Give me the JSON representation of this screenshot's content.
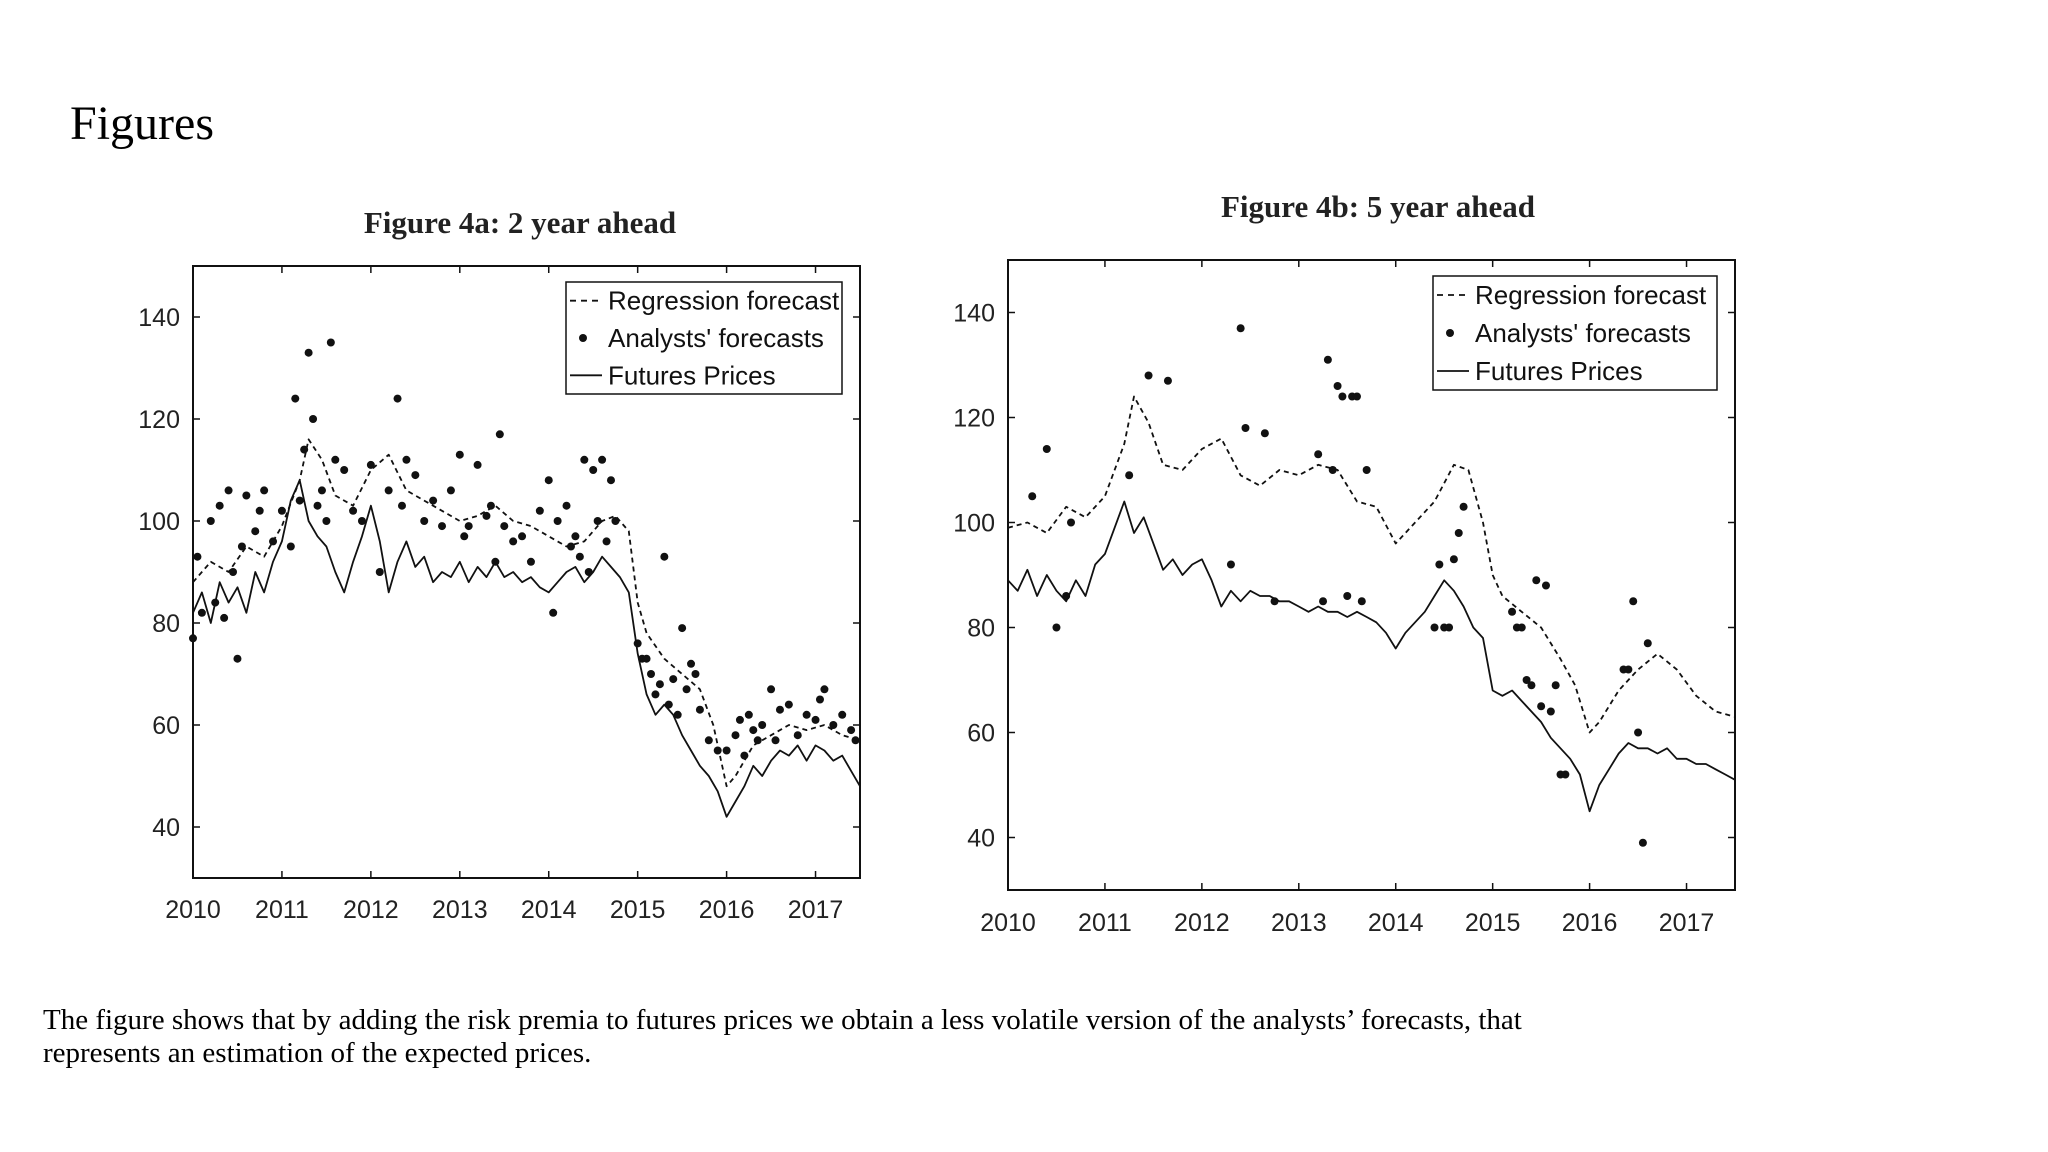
{
  "slide": {
    "title": "Figures",
    "caption_lines": [
      " The figure shows that by adding the risk premia to futures prices we obtain a less volatile version of the analysts’ forecasts, that",
      "represents an estimation of the expected prices."
    ]
  },
  "chart_data": [
    {
      "type": "line",
      "title": "Figure 4a: 2 year ahead",
      "xlabel": "",
      "ylabel": "",
      "xlim": [
        2010,
        2017.5
      ],
      "ylim": [
        30,
        150
      ],
      "x_ticks": [
        2010,
        2011,
        2012,
        2013,
        2014,
        2015,
        2016,
        2017
      ],
      "y_ticks": [
        40,
        60,
        80,
        100,
        120,
        140
      ],
      "legend_position": "top-right",
      "grid": false,
      "series": [
        {
          "name": "Regression forecast",
          "style": "dashed",
          "x": [
            2010.0,
            2010.2,
            2010.4,
            2010.6,
            2010.8,
            2011.0,
            2011.2,
            2011.3,
            2011.45,
            2011.6,
            2011.8,
            2012.0,
            2012.2,
            2012.4,
            2012.6,
            2012.8,
            2013.0,
            2013.2,
            2013.4,
            2013.6,
            2013.8,
            2014.0,
            2014.2,
            2014.4,
            2014.6,
            2014.75,
            2014.9,
            2015.0,
            2015.1,
            2015.3,
            2015.5,
            2015.7,
            2015.85,
            2016.0,
            2016.1,
            2016.3,
            2016.5,
            2016.7,
            2016.9,
            2017.1,
            2017.3,
            2017.5
          ],
          "values": [
            88,
            92,
            90,
            95,
            93,
            99,
            108,
            116,
            112,
            105,
            103,
            110,
            113,
            106,
            104,
            102,
            100,
            101,
            103,
            100,
            99,
            97,
            95,
            96,
            100,
            101,
            98,
            84,
            78,
            73,
            70,
            67,
            60,
            48,
            50,
            56,
            58,
            60,
            59,
            60,
            58,
            57
          ]
        },
        {
          "name": "Analysts' forecasts",
          "style": "markers",
          "x": [
            2010.0,
            2010.05,
            2010.1,
            2010.2,
            2010.25,
            2010.3,
            2010.35,
            2010.4,
            2010.45,
            2010.5,
            2010.55,
            2010.6,
            2010.7,
            2010.75,
            2010.8,
            2010.9,
            2011.0,
            2011.1,
            2011.15,
            2011.2,
            2011.25,
            2011.3,
            2011.35,
            2011.4,
            2011.45,
            2011.5,
            2011.55,
            2011.6,
            2011.7,
            2011.8,
            2011.9,
            2012.0,
            2012.1,
            2012.2,
            2012.3,
            2012.35,
            2012.4,
            2012.5,
            2012.6,
            2012.7,
            2012.8,
            2012.9,
            2013.0,
            2013.05,
            2013.1,
            2013.2,
            2013.3,
            2013.35,
            2013.4,
            2013.45,
            2013.5,
            2013.6,
            2013.7,
            2013.8,
            2013.9,
            2014.0,
            2014.05,
            2014.1,
            2014.2,
            2014.25,
            2014.3,
            2014.35,
            2014.4,
            2014.45,
            2014.5,
            2014.55,
            2014.6,
            2014.65,
            2014.7,
            2014.75,
            2015.0,
            2015.05,
            2015.1,
            2015.15,
            2015.2,
            2015.25,
            2015.3,
            2015.35,
            2015.4,
            2015.45,
            2015.5,
            2015.55,
            2015.6,
            2015.65,
            2015.7,
            2015.8,
            2015.9,
            2016.0,
            2016.1,
            2016.15,
            2016.2,
            2016.25,
            2016.3,
            2016.35,
            2016.4,
            2016.5,
            2016.55,
            2016.6,
            2016.7,
            2016.8,
            2016.9,
            2017.0,
            2017.05,
            2017.1,
            2017.2,
            2017.3,
            2017.4,
            2017.45
          ],
          "values": [
            77,
            93,
            82,
            100,
            84,
            103,
            81,
            106,
            90,
            73,
            95,
            105,
            98,
            102,
            106,
            96,
            102,
            95,
            124,
            104,
            114,
            133,
            120,
            103,
            106,
            100,
            135,
            112,
            110,
            102,
            100,
            111,
            90,
            106,
            124,
            103,
            112,
            109,
            100,
            104,
            99,
            106,
            113,
            97,
            99,
            111,
            101,
            103,
            92,
            117,
            99,
            96,
            97,
            92,
            102,
            108,
            82,
            100,
            103,
            95,
            97,
            93,
            112,
            90,
            110,
            100,
            112,
            96,
            108,
            100,
            76,
            73,
            73,
            70,
            66,
            68,
            93,
            64,
            69,
            62,
            79,
            67,
            72,
            70,
            63,
            57,
            55,
            55,
            58,
            61,
            54,
            62,
            59,
            57,
            60,
            67,
            57,
            63,
            64,
            58,
            62,
            61,
            65,
            67,
            60,
            62,
            59,
            57
          ]
        },
        {
          "name": "Futures Prices",
          "style": "solid",
          "x": [
            2010.0,
            2010.1,
            2010.2,
            2010.3,
            2010.4,
            2010.5,
            2010.6,
            2010.7,
            2010.8,
            2010.9,
            2011.0,
            2011.1,
            2011.2,
            2011.3,
            2011.4,
            2011.5,
            2011.6,
            2011.7,
            2011.8,
            2011.9,
            2012.0,
            2012.1,
            2012.2,
            2012.3,
            2012.4,
            2012.5,
            2012.6,
            2012.7,
            2012.8,
            2012.9,
            2013.0,
            2013.1,
            2013.2,
            2013.3,
            2013.4,
            2013.5,
            2013.6,
            2013.7,
            2013.8,
            2013.9,
            2014.0,
            2014.1,
            2014.2,
            2014.3,
            2014.4,
            2014.5,
            2014.6,
            2014.7,
            2014.8,
            2014.9,
            2015.0,
            2015.1,
            2015.2,
            2015.3,
            2015.4,
            2015.5,
            2015.6,
            2015.7,
            2015.8,
            2015.9,
            2016.0,
            2016.1,
            2016.2,
            2016.3,
            2016.4,
            2016.5,
            2016.6,
            2016.7,
            2016.8,
            2016.9,
            2017.0,
            2017.1,
            2017.2,
            2017.3,
            2017.4,
            2017.5
          ],
          "values": [
            82,
            86,
            80,
            88,
            84,
            87,
            82,
            90,
            86,
            92,
            96,
            104,
            108,
            100,
            97,
            95,
            90,
            86,
            92,
            97,
            103,
            96,
            86,
            92,
            96,
            91,
            93,
            88,
            90,
            89,
            92,
            88,
            91,
            89,
            92,
            89,
            90,
            88,
            89,
            87,
            86,
            88,
            90,
            91,
            88,
            90,
            93,
            91,
            89,
            86,
            74,
            66,
            62,
            64,
            62,
            58,
            55,
            52,
            50,
            47,
            42,
            45,
            48,
            52,
            50,
            53,
            55,
            54,
            56,
            53,
            56,
            55,
            53,
            54,
            51,
            48
          ]
        }
      ]
    },
    {
      "type": "line",
      "title": "Figure 4b: 5 year ahead",
      "xlabel": "",
      "ylabel": "",
      "xlim": [
        2010,
        2017.5
      ],
      "ylim": [
        30,
        150
      ],
      "x_ticks": [
        2010,
        2011,
        2012,
        2013,
        2014,
        2015,
        2016,
        2017
      ],
      "y_ticks": [
        40,
        60,
        80,
        100,
        120,
        140
      ],
      "legend_position": "top-right",
      "grid": false,
      "series": [
        {
          "name": "Regression forecast",
          "style": "dashed",
          "x": [
            2010.0,
            2010.2,
            2010.4,
            2010.6,
            2010.8,
            2011.0,
            2011.2,
            2011.3,
            2011.45,
            2011.6,
            2011.8,
            2012.0,
            2012.2,
            2012.4,
            2012.6,
            2012.8,
            2013.0,
            2013.2,
            2013.4,
            2013.6,
            2013.8,
            2014.0,
            2014.2,
            2014.4,
            2014.6,
            2014.75,
            2014.9,
            2015.0,
            2015.1,
            2015.3,
            2015.5,
            2015.7,
            2015.85,
            2016.0,
            2016.1,
            2016.3,
            2016.5,
            2016.7,
            2016.9,
            2017.1,
            2017.3,
            2017.5
          ],
          "values": [
            99,
            100,
            98,
            103,
            101,
            105,
            115,
            124,
            119,
            111,
            110,
            114,
            116,
            109,
            107,
            110,
            109,
            111,
            110,
            104,
            103,
            96,
            100,
            104,
            111,
            110,
            100,
            90,
            86,
            83,
            80,
            74,
            69,
            60,
            62,
            68,
            72,
            75,
            72,
            67,
            64,
            63
          ]
        },
        {
          "name": "Analysts' forecasts",
          "style": "markers",
          "x": [
            2010.25,
            2010.4,
            2010.5,
            2010.6,
            2010.65,
            2011.25,
            2011.45,
            2011.65,
            2012.3,
            2012.4,
            2012.45,
            2012.65,
            2012.75,
            2013.2,
            2013.25,
            2013.3,
            2013.35,
            2013.4,
            2013.45,
            2013.5,
            2013.55,
            2013.6,
            2013.65,
            2013.7,
            2014.4,
            2014.45,
            2014.5,
            2014.55,
            2014.6,
            2014.65,
            2014.7,
            2015.2,
            2015.25,
            2015.3,
            2015.35,
            2015.4,
            2015.45,
            2015.5,
            2015.55,
            2015.6,
            2015.65,
            2015.7,
            2015.75,
            2016.35,
            2016.4,
            2016.45,
            2016.5,
            2016.55,
            2016.6
          ],
          "values": [
            105,
            114,
            80,
            86,
            100,
            109,
            128,
            127,
            92,
            137,
            118,
            117,
            85,
            113,
            85,
            131,
            110,
            126,
            124,
            86,
            124,
            124,
            85,
            110,
            80,
            92,
            80,
            80,
            93,
            98,
            103,
            83,
            80,
            80,
            70,
            69,
            89,
            65,
            88,
            64,
            69,
            52,
            52,
            72,
            72,
            85,
            60,
            39,
            77
          ]
        },
        {
          "name": "Futures Prices",
          "style": "solid",
          "x": [
            2010.0,
            2010.1,
            2010.2,
            2010.3,
            2010.4,
            2010.5,
            2010.6,
            2010.7,
            2010.8,
            2010.9,
            2011.0,
            2011.1,
            2011.2,
            2011.3,
            2011.4,
            2011.5,
            2011.6,
            2011.7,
            2011.8,
            2011.9,
            2012.0,
            2012.1,
            2012.2,
            2012.3,
            2012.4,
            2012.5,
            2012.6,
            2012.7,
            2012.8,
            2012.9,
            2013.0,
            2013.1,
            2013.2,
            2013.3,
            2013.4,
            2013.5,
            2013.6,
            2013.7,
            2013.8,
            2013.9,
            2014.0,
            2014.1,
            2014.2,
            2014.3,
            2014.4,
            2014.5,
            2014.6,
            2014.7,
            2014.8,
            2014.9,
            2015.0,
            2015.1,
            2015.2,
            2015.3,
            2015.4,
            2015.5,
            2015.6,
            2015.7,
            2015.8,
            2015.9,
            2016.0,
            2016.1,
            2016.2,
            2016.3,
            2016.4,
            2016.5,
            2016.6,
            2016.7,
            2016.8,
            2016.9,
            2017.0,
            2017.1,
            2017.2,
            2017.3,
            2017.4,
            2017.5
          ],
          "values": [
            89,
            87,
            91,
            86,
            90,
            87,
            85,
            89,
            86,
            92,
            94,
            99,
            104,
            98,
            101,
            96,
            91,
            93,
            90,
            92,
            93,
            89,
            84,
            87,
            85,
            87,
            86,
            86,
            85,
            85,
            84,
            83,
            84,
            83,
            83,
            82,
            83,
            82,
            81,
            79,
            76,
            79,
            81,
            83,
            86,
            89,
            87,
            84,
            80,
            78,
            68,
            67,
            68,
            66,
            64,
            62,
            59,
            57,
            55,
            52,
            45,
            50,
            53,
            56,
            58,
            57,
            57,
            56,
            57,
            55,
            55,
            54,
            54,
            53,
            52,
            51
          ]
        }
      ]
    }
  ]
}
